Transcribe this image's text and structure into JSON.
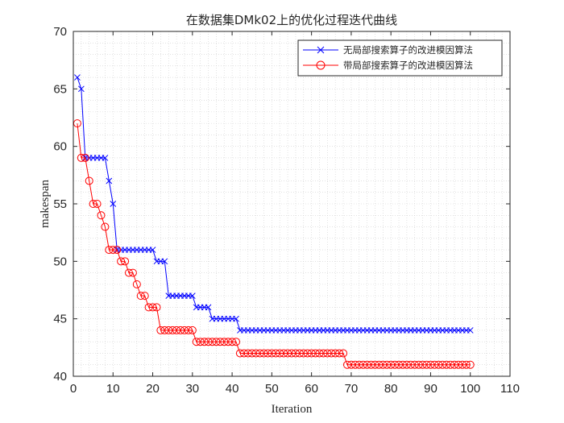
{
  "chart_data": {
    "type": "line",
    "title": "在数据集DMk02上的优化过程迭代曲线",
    "xlabel": "Iteration",
    "ylabel": "makespan",
    "xlim": [
      0,
      110
    ],
    "ylim": [
      40,
      70
    ],
    "xticks": [
      0,
      10,
      20,
      30,
      40,
      50,
      60,
      70,
      80,
      90,
      100,
      110
    ],
    "yticks": [
      40,
      45,
      50,
      55,
      60,
      65,
      70
    ],
    "grid": "minor-dotted",
    "legend_position": "top-right",
    "series": [
      {
        "name": "无局部搜索算子的改进模因算法",
        "color": "#0000ff",
        "marker": "x",
        "x": [
          1,
          2,
          3,
          4,
          5,
          6,
          7,
          8,
          9,
          10,
          11,
          12,
          13,
          14,
          15,
          16,
          17,
          18,
          19,
          20,
          21,
          22,
          23,
          24,
          25,
          26,
          27,
          28,
          29,
          30,
          31,
          32,
          33,
          34,
          35,
          36,
          37,
          38,
          39,
          40,
          41,
          42,
          43,
          44,
          45,
          46,
          47,
          48,
          49,
          50,
          51,
          52,
          53,
          54,
          55,
          56,
          57,
          58,
          59,
          60,
          61,
          62,
          63,
          64,
          65,
          66,
          67,
          68,
          69,
          70,
          71,
          72,
          73,
          74,
          75,
          76,
          77,
          78,
          79,
          80,
          81,
          82,
          83,
          84,
          85,
          86,
          87,
          88,
          89,
          90,
          91,
          92,
          93,
          94,
          95,
          96,
          97,
          98,
          99,
          100
        ],
        "y": [
          66,
          65,
          59,
          59,
          59,
          59,
          59,
          59,
          57,
          55,
          51,
          51,
          51,
          51,
          51,
          51,
          51,
          51,
          51,
          51,
          50,
          50,
          50,
          47,
          47,
          47,
          47,
          47,
          47,
          47,
          46,
          46,
          46,
          46,
          45,
          45,
          45,
          45,
          45,
          45,
          45,
          44,
          44,
          44,
          44,
          44,
          44,
          44,
          44,
          44,
          44,
          44,
          44,
          44,
          44,
          44,
          44,
          44,
          44,
          44,
          44,
          44,
          44,
          44,
          44,
          44,
          44,
          44,
          44,
          44,
          44,
          44,
          44,
          44,
          44,
          44,
          44,
          44,
          44,
          44,
          44,
          44,
          44,
          44,
          44,
          44,
          44,
          44,
          44,
          44,
          44,
          44,
          44,
          44,
          44,
          44,
          44,
          44,
          44,
          44
        ]
      },
      {
        "name": "带局部搜索算子的改进模因算法",
        "color": "#ff0000",
        "marker": "o",
        "x": [
          1,
          2,
          3,
          4,
          5,
          6,
          7,
          8,
          9,
          10,
          11,
          12,
          13,
          14,
          15,
          16,
          17,
          18,
          19,
          20,
          21,
          22,
          23,
          24,
          25,
          26,
          27,
          28,
          29,
          30,
          31,
          32,
          33,
          34,
          35,
          36,
          37,
          38,
          39,
          40,
          41,
          42,
          43,
          44,
          45,
          46,
          47,
          48,
          49,
          50,
          51,
          52,
          53,
          54,
          55,
          56,
          57,
          58,
          59,
          60,
          61,
          62,
          63,
          64,
          65,
          66,
          67,
          68,
          69,
          70,
          71,
          72,
          73,
          74,
          75,
          76,
          77,
          78,
          79,
          80,
          81,
          82,
          83,
          84,
          85,
          86,
          87,
          88,
          89,
          90,
          91,
          92,
          93,
          94,
          95,
          96,
          97,
          98,
          99,
          100
        ],
        "y": [
          62,
          59,
          59,
          57,
          55,
          55,
          54,
          53,
          51,
          51,
          51,
          50,
          50,
          49,
          49,
          48,
          47,
          47,
          46,
          46,
          46,
          44,
          44,
          44,
          44,
          44,
          44,
          44,
          44,
          44,
          43,
          43,
          43,
          43,
          43,
          43,
          43,
          43,
          43,
          43,
          43,
          42,
          42,
          42,
          42,
          42,
          42,
          42,
          42,
          42,
          42,
          42,
          42,
          42,
          42,
          42,
          42,
          42,
          42,
          42,
          42,
          42,
          42,
          42,
          42,
          42,
          42,
          42,
          41,
          41,
          41,
          41,
          41,
          41,
          41,
          41,
          41,
          41,
          41,
          41,
          41,
          41,
          41,
          41,
          41,
          41,
          41,
          41,
          41,
          41,
          41,
          41,
          41,
          41,
          41,
          41,
          41,
          41,
          41,
          41
        ]
      }
    ]
  }
}
